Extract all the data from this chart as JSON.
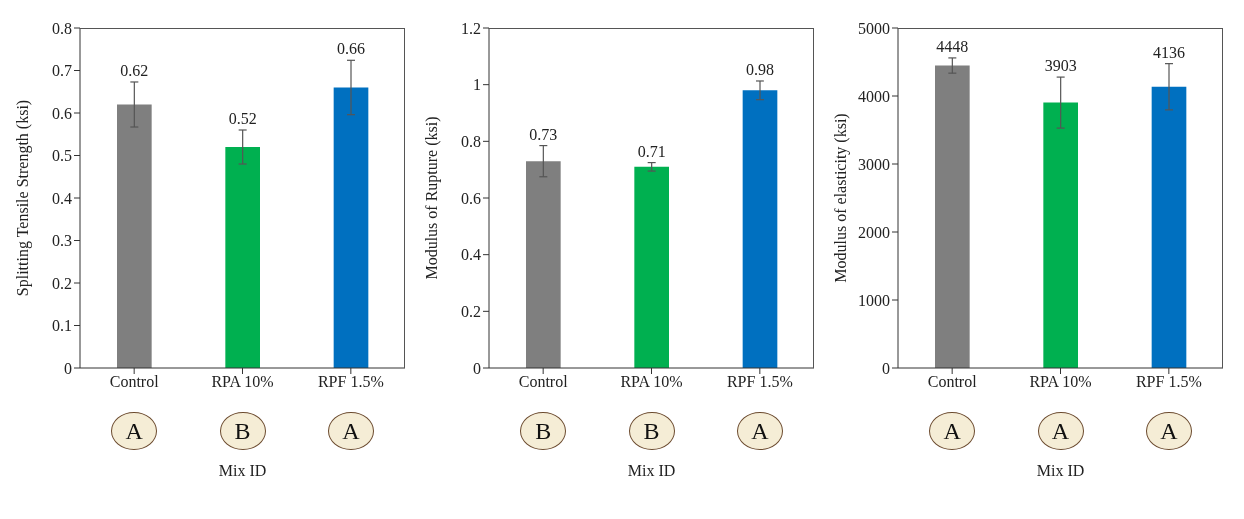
{
  "chart_data": [
    {
      "type": "bar",
      "categories": [
        "Control",
        "RPA 10%",
        "RPF 1.5%"
      ],
      "values": [
        0.62,
        0.52,
        0.66
      ],
      "colors": [
        "#7f7f7f",
        "#00b050",
        "#0070c0"
      ],
      "errors": [
        0.053,
        0.04,
        0.064
      ],
      "ylim": [
        0,
        0.8
      ],
      "yticks": [
        0,
        0.1,
        0.2,
        0.3,
        0.4,
        0.5,
        0.6,
        0.7,
        0.8
      ],
      "ylabel": "Splitting Tensile Strength (ksi)",
      "xlabel": "Mix ID",
      "data_labels": true,
      "grid": false,
      "annotations": [
        "A",
        "B",
        "A"
      ]
    },
    {
      "type": "bar",
      "categories": [
        "Control",
        "RPA 10%",
        "RPF 1.5%"
      ],
      "values": [
        0.73,
        0.71,
        0.98
      ],
      "colors": [
        "#7f7f7f",
        "#00b050",
        "#0070c0"
      ],
      "errors": [
        0.055,
        0.015,
        0.033
      ],
      "ylim": [
        0,
        1.2
      ],
      "yticks": [
        0,
        0.2,
        0.4,
        0.6,
        0.8,
        1,
        1.2
      ],
      "ylabel": "Modulus of Rupture (ksi)",
      "xlabel": "Mix ID",
      "data_labels": true,
      "grid": false,
      "annotations": [
        "B",
        "B",
        "A"
      ]
    },
    {
      "type": "bar",
      "categories": [
        "Control",
        "RPA 10%",
        "RPF 1.5%"
      ],
      "values": [
        4448,
        3903,
        4136
      ],
      "colors": [
        "#7f7f7f",
        "#00b050",
        "#0070c0"
      ],
      "errors": [
        112,
        375,
        340
      ],
      "ylim": [
        0,
        5000
      ],
      "yticks": [
        0,
        1000,
        2000,
        3000,
        4000,
        5000
      ],
      "ylabel": "Modulus of elasticity (ksi)",
      "xlabel": "Mix ID",
      "data_labels": true,
      "grid": false,
      "annotations": [
        "A",
        "A",
        "A"
      ]
    }
  ]
}
